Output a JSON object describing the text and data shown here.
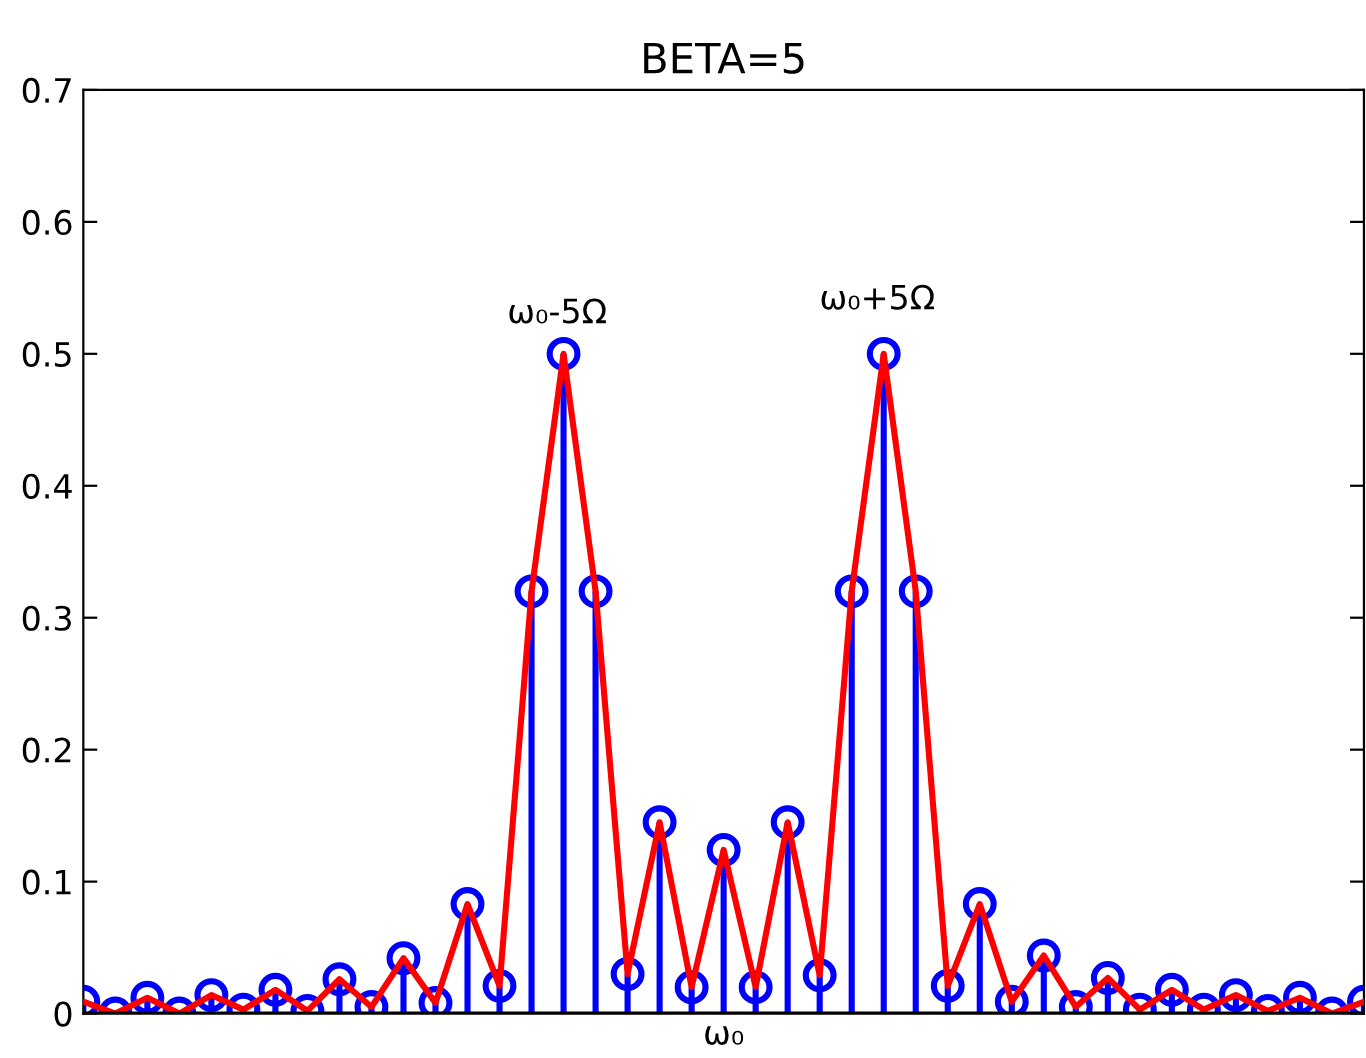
{
  "chart_data": {
    "type": "lollipop",
    "title": "BETA=5",
    "categories": [
      null,
      null,
      null,
      null,
      null,
      null,
      null,
      null,
      null,
      null,
      null,
      null,
      null,
      null,
      null,
      null,
      null,
      null,
      null,
      null,
      "ω₀",
      null,
      null,
      null,
      null,
      null,
      null,
      null,
      null,
      null,
      null,
      null,
      null,
      null,
      null,
      null,
      null,
      null,
      null,
      null,
      null
    ],
    "series": [
      {
        "color": "#0000ff",
        "marker": "circle",
        "values": [
          0.009,
          0,
          0.012,
          0,
          0.014,
          0.003,
          0.018,
          0.002,
          0.026,
          0.005,
          0.042,
          0.008,
          0.083,
          0.021,
          0.32,
          0.5,
          0.32,
          0.03,
          0.145,
          0.02,
          0.124,
          0.02,
          0.145,
          0.029,
          0.32,
          0.5,
          0.32,
          0.021,
          0.083,
          0.009,
          0.044,
          0.005,
          0.027,
          0.003,
          0.018,
          0.003,
          0.014,
          0.002,
          0.012,
          0,
          0.009
        ]
      },
      {
        "type": "line",
        "color": "#ff0000",
        "values": [
          0.009,
          0,
          0.012,
          0,
          0.014,
          0.003,
          0.018,
          0.002,
          0.026,
          0.005,
          0.042,
          0.008,
          0.083,
          0.021,
          0.32,
          0.5,
          0.32,
          0.03,
          0.145,
          0.02,
          0.124,
          0.02,
          0.145,
          0.029,
          0.32,
          0.5,
          0.32,
          0.021,
          0.083,
          0.009,
          0.044,
          0.005,
          0.027,
          0.003,
          0.018,
          0.003,
          0.014,
          0.002,
          0.012,
          0,
          0.009
        ]
      }
    ],
    "ylim": [
      0,
      0.7
    ],
    "yticks": [
      {
        "value": 0,
        "label": "0"
      },
      0.1,
      0.2,
      0.3,
      0.4,
      0.5,
      0.6,
      0.7
    ],
    "annotations": [
      "ω₀-5Ω",
      "ω₀+5Ω"
    ],
    "grid": false,
    "legend": false
  }
}
